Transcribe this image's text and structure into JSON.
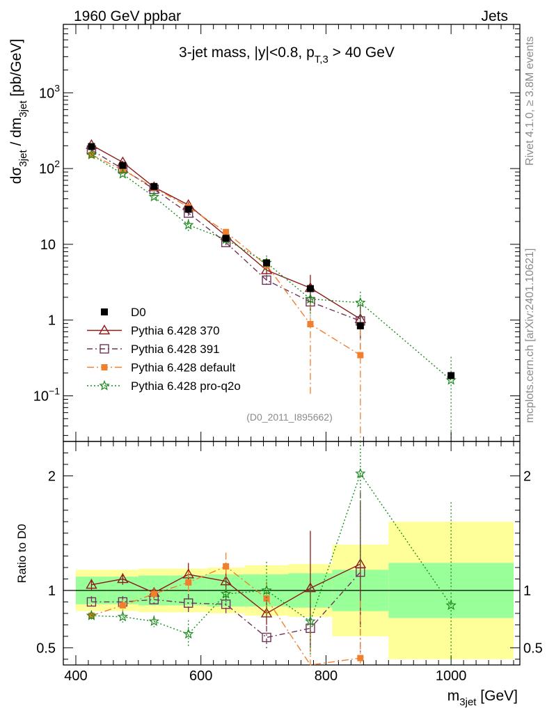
{
  "header": {
    "left": "1960 GeV ppbar",
    "right": "Jets"
  },
  "side_labels": {
    "rivet": "Rivet 4.1.0, ≥ 3.8M events",
    "mcplots": "mcplots.cern.ch [arXiv:2401.10621]"
  },
  "analysis_id": "(D0_2011_I895662)",
  "chart_data": {
    "type": "scatter",
    "title": "3-jet mass, |y|<0.8, p_T,3 > 40 GeV",
    "title_parts": {
      "main": "3-jet mass, |y|<0.8, p",
      "sub": "T,3",
      "tail": " > 40 GeV"
    },
    "xlabel": "m_3jet [GeV]",
    "xlabel_parts": {
      "main": "m",
      "sub": "3jet",
      "tail": " [GeV]"
    },
    "ylabel": "dσ_3jet / dm_3jet [pb/GeV]",
    "ylabel_parts": {
      "a": "dσ",
      "sub1": "3jet",
      "b": " / dm",
      "sub2": "3jet",
      "c": " [pb/GeV]"
    },
    "ratio_ylabel": "Ratio to D0",
    "xlim": [
      380,
      1110
    ],
    "ylim": [
      0.025,
      8000
    ],
    "yscale": "log",
    "ratio_ylim": [
      0.35,
      2.3
    ],
    "x_ticks": [
      400,
      600,
      800,
      1000
    ],
    "y_ticks": [
      {
        "v": 0.1,
        "base": "10",
        "exp": "−1"
      },
      {
        "v": 1,
        "base": "1",
        "exp": ""
      },
      {
        "v": 10,
        "base": "10",
        "exp": ""
      },
      {
        "v": 100,
        "base": "10",
        "exp": "2"
      },
      {
        "v": 1000,
        "base": "10",
        "exp": "3"
      }
    ],
    "ratio_ticks": [
      {
        "v": 0.5,
        "label": "0.5"
      },
      {
        "v": 1,
        "label": "1"
      },
      {
        "v": 2,
        "label": "2"
      }
    ],
    "bins": [
      [
        400,
        450
      ],
      [
        450,
        500
      ],
      [
        500,
        550
      ],
      [
        550,
        610
      ],
      [
        610,
        670
      ],
      [
        670,
        740
      ],
      [
        740,
        810
      ],
      [
        810,
        900
      ],
      [
        900,
        1100
      ]
    ],
    "band_inner": [
      0.12,
      0.12,
      0.13,
      0.13,
      0.14,
      0.14,
      0.15,
      0.18,
      0.24
    ],
    "band_outer": [
      0.18,
      0.18,
      0.19,
      0.19,
      0.2,
      0.22,
      0.23,
      0.4,
      0.6
    ],
    "data": {
      "name": "D0",
      "x": [
        425,
        475,
        525,
        580,
        640,
        705,
        775,
        855,
        1000
      ],
      "y": [
        195,
        110,
        58,
        29,
        12,
        5.7,
        2.6,
        0.84,
        0.185
      ]
    },
    "series": [
      {
        "name": "Pythia 6.428 370",
        "color": "#8b1a1a",
        "dash": "",
        "marker": "triangle",
        "x": [
          425,
          475,
          525,
          580,
          640,
          705,
          775,
          855
        ],
        "ratio": [
          1.05,
          1.1,
          0.98,
          1.14,
          1.08,
          0.8,
          1.02,
          1.23
        ],
        "rerr": [
          0.05,
          0.05,
          0.04,
          0.1,
          0.1,
          0.1,
          0.5,
          0.55
        ]
      },
      {
        "name": "Pythia 6.428 391",
        "color": "#6e3358",
        "dash": "8,4,2,4",
        "marker": "square",
        "x": [
          425,
          475,
          525,
          580,
          640,
          705,
          775,
          855
        ],
        "ratio": [
          0.9,
          0.9,
          0.92,
          0.89,
          0.88,
          0.59,
          0.67,
          1.16
        ],
        "rerr": [
          0.05,
          0.05,
          0.05,
          0.08,
          0.08,
          0.1,
          0.2,
          0.7
        ]
      },
      {
        "name": "Pythia 6.428 default",
        "color": "#f07f2e",
        "dash": "10,4,2,4",
        "marker": "smallsquare",
        "x": [
          425,
          475,
          525,
          580,
          640,
          705,
          775,
          855
        ],
        "ratio": [
          0.78,
          0.87,
          0.97,
          1.07,
          1.21,
          0.93,
          0.34,
          0.41
        ],
        "rerr": [
          0.04,
          0.05,
          0.05,
          0.1,
          0.12,
          0.15,
          0.3,
          0.5
        ]
      },
      {
        "name": "Pythia 6.428 pro-q2o",
        "color": "#1a8a1a",
        "dash": "2,3",
        "marker": "star",
        "x": [
          425,
          475,
          525,
          580,
          640,
          705,
          775,
          855,
          1000
        ],
        "ratio": [
          0.78,
          0.77,
          0.73,
          0.62,
          0.97,
          1.0,
          0.73,
          2.02,
          0.87
        ],
        "rerr": [
          0.04,
          0.05,
          0.05,
          0.12,
          0.12,
          0.25,
          0.3,
          0.8,
          0.9
        ]
      }
    ]
  }
}
